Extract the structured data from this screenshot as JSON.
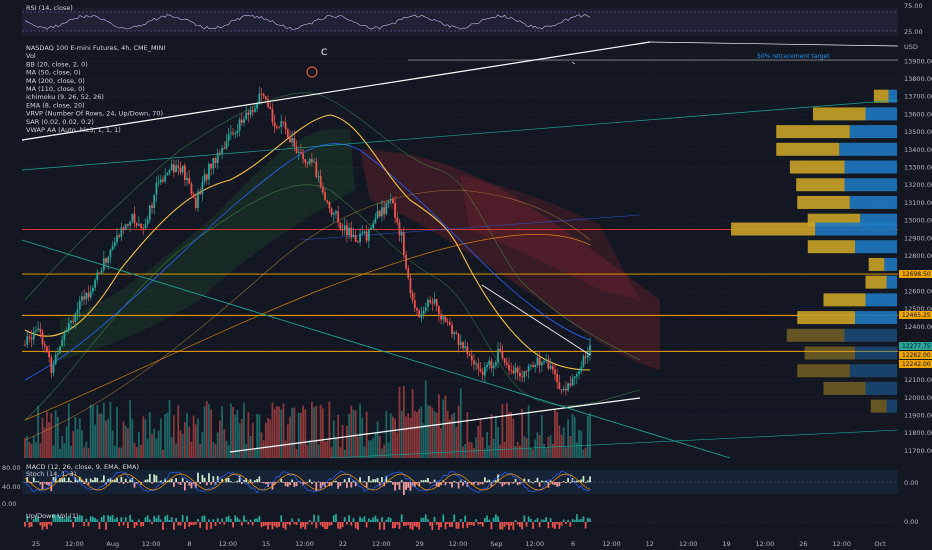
{
  "panes": {
    "rsi_label": "RSI (14, close)",
    "rsi_ticks": [
      "75.00",
      "25.00"
    ],
    "macd_label": "MACD (12, 26, close, 9, EMA, EMA)",
    "stoch_label": "Stoch (14, 1, 3)",
    "stoch_ticks": [
      "80.00",
      "40.00",
      "0.00"
    ],
    "macd_tick": "0.00",
    "updown_label": "Up/Down Vol (1)",
    "updown_tick": "0.00"
  },
  "legend": [
    "NASDAQ 100 E-mini Futures, 4h, CME_MINI",
    "Vol",
    "BB (20, close, 2, 0)",
    "MA (50, close, 0)",
    "MA (200, close, 0)",
    "MA (110, close, 0)",
    "Ichimoku (9, 26, 52, 26)",
    "EMA (8, close, 20)",
    "VRVP (Number Of Rows, 24, Up/Down, 70)",
    "SAR (0.02, 0.02, 0.2)",
    "VWAP AA (Auto, hlc3, 1, 1, 1)"
  ],
  "annotations": {
    "wave_label": "C",
    "target_label": "50% retracement target"
  },
  "currency": "USD",
  "price_tags": [
    {
      "text": "12698.50",
      "color": "#f0a500"
    },
    {
      "text": "12465.25",
      "color": "#f0a500"
    },
    {
      "text": "12277.75",
      "color": "#26a69a"
    },
    {
      "text": "12262.00",
      "color": "#f0a500"
    },
    {
      "text": "12242.00",
      "color": "#f0a500"
    }
  ],
  "colors": {
    "up": "#26a69a",
    "down": "#ef5350",
    "ema": "#f5c242",
    "ma": "#2962ff",
    "trend_white": "#ffffff",
    "teal_line": "#1aa39a",
    "hline_orange": "#f0a500",
    "hline_red": "#e53935",
    "vrvp_up": "#1f78c1",
    "vrvp_down": "#c9a227"
  },
  "chart_data": {
    "type": "candlestick",
    "symbol": "NASDAQ 100 E-mini Futures",
    "interval": "4h",
    "x_ticks": [
      "25",
      "12:00",
      "Aug",
      "12:00",
      "8",
      "12:00",
      "15",
      "12:00",
      "22",
      "12:00",
      "29",
      "12:00",
      "Sep",
      "12:00",
      "6",
      "12:00",
      "12",
      "12:00",
      "19",
      "12:00",
      "26",
      "12:00",
      "Oct"
    ],
    "y_ticks": [
      13900,
      13800,
      13700,
      13600,
      13500,
      13400,
      13300,
      13200,
      13100,
      13000,
      12900,
      12800,
      12700,
      12600,
      12500,
      12400,
      12300,
      12200,
      12100,
      12000,
      11900,
      11800,
      11700
    ],
    "ylim": [
      11660,
      14020
    ],
    "close_path": [
      {
        "t": 0,
        "p": 12300
      },
      {
        "t": 6,
        "p": 12420
      },
      {
        "t": 12,
        "p": 12160
      },
      {
        "t": 18,
        "p": 12390
      },
      {
        "t": 24,
        "p": 12500
      },
      {
        "t": 30,
        "p": 12620
      },
      {
        "t": 36,
        "p": 12760
      },
      {
        "t": 42,
        "p": 12900
      },
      {
        "t": 48,
        "p": 13020
      },
      {
        "t": 54,
        "p": 12960
      },
      {
        "t": 60,
        "p": 13180
      },
      {
        "t": 66,
        "p": 13320
      },
      {
        "t": 72,
        "p": 13280
      },
      {
        "t": 78,
        "p": 13100
      },
      {
        "t": 84,
        "p": 13300
      },
      {
        "t": 90,
        "p": 13420
      },
      {
        "t": 96,
        "p": 13520
      },
      {
        "t": 102,
        "p": 13600
      },
      {
        "t": 108,
        "p": 13700
      },
      {
        "t": 114,
        "p": 13560
      },
      {
        "t": 120,
        "p": 13500
      },
      {
        "t": 126,
        "p": 13350
      },
      {
        "t": 132,
        "p": 13300
      },
      {
        "t": 138,
        "p": 13100
      },
      {
        "t": 144,
        "p": 12980
      },
      {
        "t": 150,
        "p": 12900
      },
      {
        "t": 156,
        "p": 12920
      },
      {
        "t": 162,
        "p": 13050
      },
      {
        "t": 168,
        "p": 13100
      },
      {
        "t": 172,
        "p": 12900
      },
      {
        "t": 176,
        "p": 12580
      },
      {
        "t": 180,
        "p": 12480
      },
      {
        "t": 186,
        "p": 12560
      },
      {
        "t": 192,
        "p": 12420
      },
      {
        "t": 198,
        "p": 12330
      },
      {
        "t": 204,
        "p": 12200
      },
      {
        "t": 210,
        "p": 12150
      },
      {
        "t": 216,
        "p": 12250
      },
      {
        "t": 222,
        "p": 12180
      },
      {
        "t": 228,
        "p": 12120
      },
      {
        "t": 234,
        "p": 12220
      },
      {
        "t": 240,
        "p": 12180
      },
      {
        "t": 246,
        "p": 12020
      },
      {
        "t": 252,
        "p": 12150
      },
      {
        "t": 258,
        "p": 12277.75
      }
    ],
    "horizontal_levels": [
      {
        "price": 12950,
        "color": "red"
      },
      {
        "price": 12698.5,
        "color": "orange"
      },
      {
        "price": 12465.25,
        "color": "orange"
      },
      {
        "price": 12262,
        "color": "orange"
      }
    ],
    "volume_profile": [
      {
        "price": 13700,
        "up": 14,
        "down": 8
      },
      {
        "price": 13600,
        "up": 50,
        "down": 30
      },
      {
        "price": 13500,
        "up": 70,
        "down": 45
      },
      {
        "price": 13400,
        "up": 60,
        "down": 55
      },
      {
        "price": 13300,
        "up": 52,
        "down": 50
      },
      {
        "price": 13200,
        "up": 46,
        "down": 50
      },
      {
        "price": 13100,
        "up": 50,
        "down": 45
      },
      {
        "price": 13000,
        "up": 50,
        "down": 35
      },
      {
        "price": 12950,
        "up": 80,
        "down": 78
      },
      {
        "price": 12850,
        "up": 45,
        "down": 40
      },
      {
        "price": 12750,
        "up": 15,
        "down": 12
      },
      {
        "price": 12650,
        "up": 20,
        "down": 10
      },
      {
        "price": 12550,
        "up": 40,
        "down": 30
      },
      {
        "price": 12450,
        "up": 55,
        "down": 40
      },
      {
        "price": 12350,
        "up": 55,
        "down": 50
      },
      {
        "price": 12250,
        "up": 48,
        "down": 40
      },
      {
        "price": 12150,
        "up": 50,
        "down": 45
      },
      {
        "price": 12050,
        "up": 40,
        "down": 30
      },
      {
        "price": 11950,
        "up": 15,
        "down": 10
      }
    ]
  }
}
